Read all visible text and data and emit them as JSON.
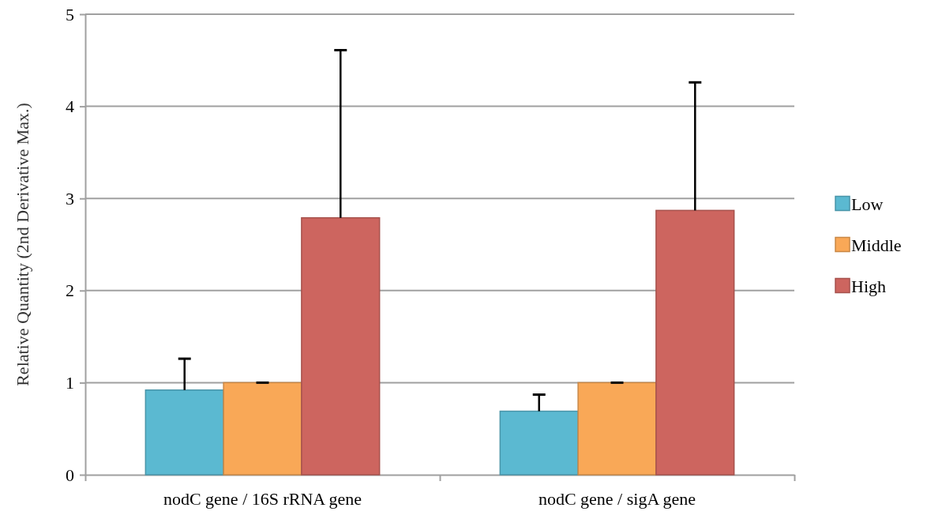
{
  "chart_data": {
    "type": "bar",
    "ylabel": "Relative Quantity (2nd Derivative Max.)",
    "categories": [
      "nodC gene / 16S rRNA gene",
      "nodC gene / sigA gene"
    ],
    "series": [
      {
        "name": "Low",
        "color": "#5bb9d1",
        "values": [
          0.92,
          0.69
        ],
        "errors": [
          [
            0.92,
            1.26
          ],
          [
            0.69,
            0.87
          ]
        ]
      },
      {
        "name": "Middle",
        "color": "#f9a857",
        "values": [
          1.0,
          1.0
        ],
        "errors": [
          [
            1.0,
            1.0
          ],
          [
            1.0,
            1.0
          ]
        ]
      },
      {
        "name": "High",
        "color": "#cd655f",
        "values": [
          2.79,
          2.87
        ],
        "errors": [
          [
            2.79,
            4.61
          ],
          [
            2.87,
            4.26
          ]
        ]
      }
    ],
    "ylim": [
      0,
      5
    ],
    "yticks": [
      0,
      1,
      2,
      3,
      4,
      5
    ],
    "grid": "y",
    "legend": "right"
  }
}
